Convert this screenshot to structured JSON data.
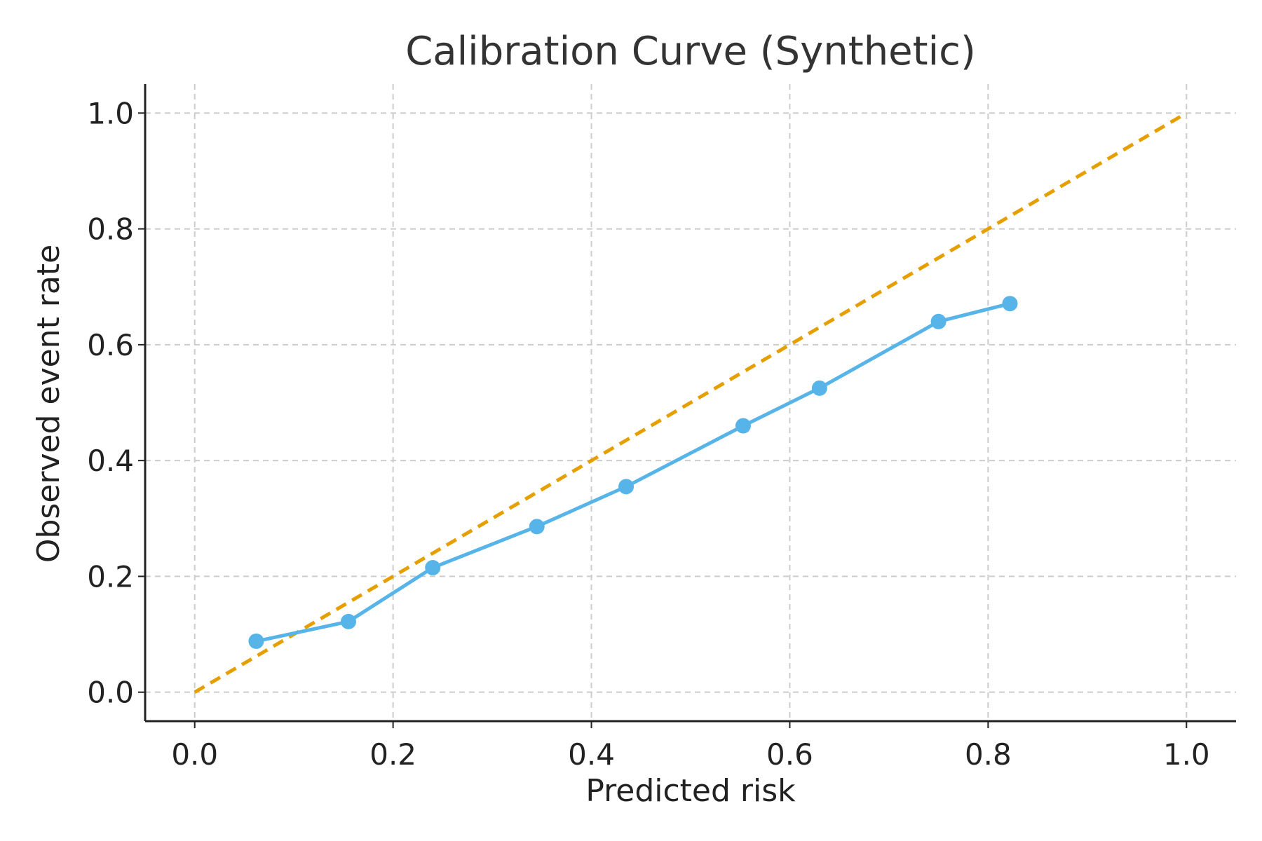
{
  "chart_data": {
    "type": "line",
    "title": "Calibration Curve (Synthetic)",
    "xlabel": "Predicted risk",
    "ylabel": "Observed event rate",
    "xlim": [
      -0.05,
      1.05
    ],
    "ylim": [
      -0.05,
      1.05
    ],
    "xticks": [
      0.0,
      0.2,
      0.4,
      0.6,
      0.8,
      1.0
    ],
    "yticks": [
      0.0,
      0.2,
      0.4,
      0.6,
      0.8,
      1.0
    ],
    "xtick_labels": [
      "0.0",
      "0.2",
      "0.4",
      "0.6",
      "0.8",
      "1.0"
    ],
    "ytick_labels": [
      "0.0",
      "0.2",
      "0.4",
      "0.6",
      "0.8",
      "1.0"
    ],
    "grid": true,
    "series": [
      {
        "style": "line-markers",
        "color": "#56B4E9",
        "x": [
          0.062,
          0.155,
          0.24,
          0.345,
          0.435,
          0.553,
          0.63,
          0.75,
          0.822
        ],
        "y": [
          0.088,
          0.122,
          0.215,
          0.286,
          0.355,
          0.46,
          0.525,
          0.64,
          0.671
        ]
      },
      {
        "style": "dashed",
        "color": "#E69F00",
        "x": [
          0.0,
          1.0
        ],
        "y": [
          0.0,
          1.0
        ]
      }
    ]
  }
}
